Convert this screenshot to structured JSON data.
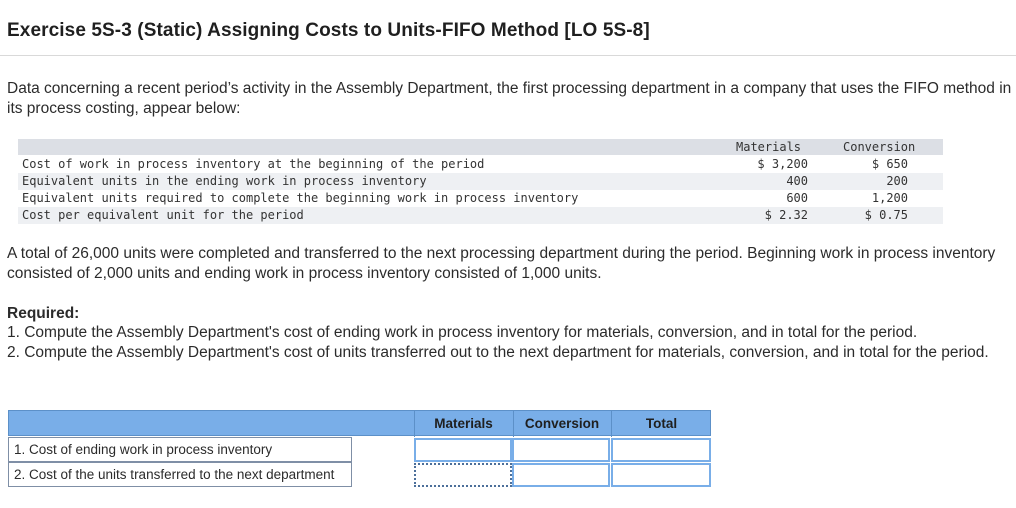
{
  "title": "Exercise 5S-3 (Static) Assigning Costs to Units-FIFO Method [LO 5S-8]",
  "intro": "Data concerning a recent period’s activity in the Assembly Department, the first processing department in a company that uses the FIFO method in its process costing, appear below:",
  "given": {
    "headers": {
      "materials": "Materials",
      "conversion": "Conversion"
    },
    "rows": [
      {
        "label": "Cost of work in process inventory at the beginning of the period",
        "materials": "$ 3,200",
        "conversion": "$ 650"
      },
      {
        "label": "Equivalent units in the ending work in process inventory",
        "materials": "400",
        "conversion": "200"
      },
      {
        "label": "Equivalent units required to complete the beginning work in process inventory",
        "materials": "600",
        "conversion": "1,200"
      },
      {
        "label": "Cost per equivalent unit for the period",
        "materials": "$ 2.32",
        "conversion": "$ 0.75"
      }
    ]
  },
  "totals_text": "A total of 26,000 units were completed and transferred to the next processing department during the period. Beginning work in process inventory consisted of 2,000 units and ending work in process inventory consisted of 1,000 units.",
  "required": {
    "label": "Required:",
    "items": [
      "1. Compute the Assembly Department's cost of ending work in process inventory for materials, conversion, and in total for the period.",
      "2. Compute the Assembly Department's cost of units transferred out to the next department for materials, conversion, and in total for the period."
    ]
  },
  "answer_table": {
    "headers": {
      "materials": "Materials",
      "conversion": "Conversion",
      "total": "Total"
    },
    "rows": [
      {
        "label": "1. Cost of ending work in process inventory",
        "materials": "",
        "conversion": "",
        "total": ""
      },
      {
        "label": "2. Cost of the units transferred to the next department",
        "materials": "",
        "conversion": "",
        "total": ""
      }
    ]
  },
  "colors": {
    "header_blue": "#79aee8",
    "input_border": "#79aee8",
    "data_band": "#dcdfe5"
  }
}
